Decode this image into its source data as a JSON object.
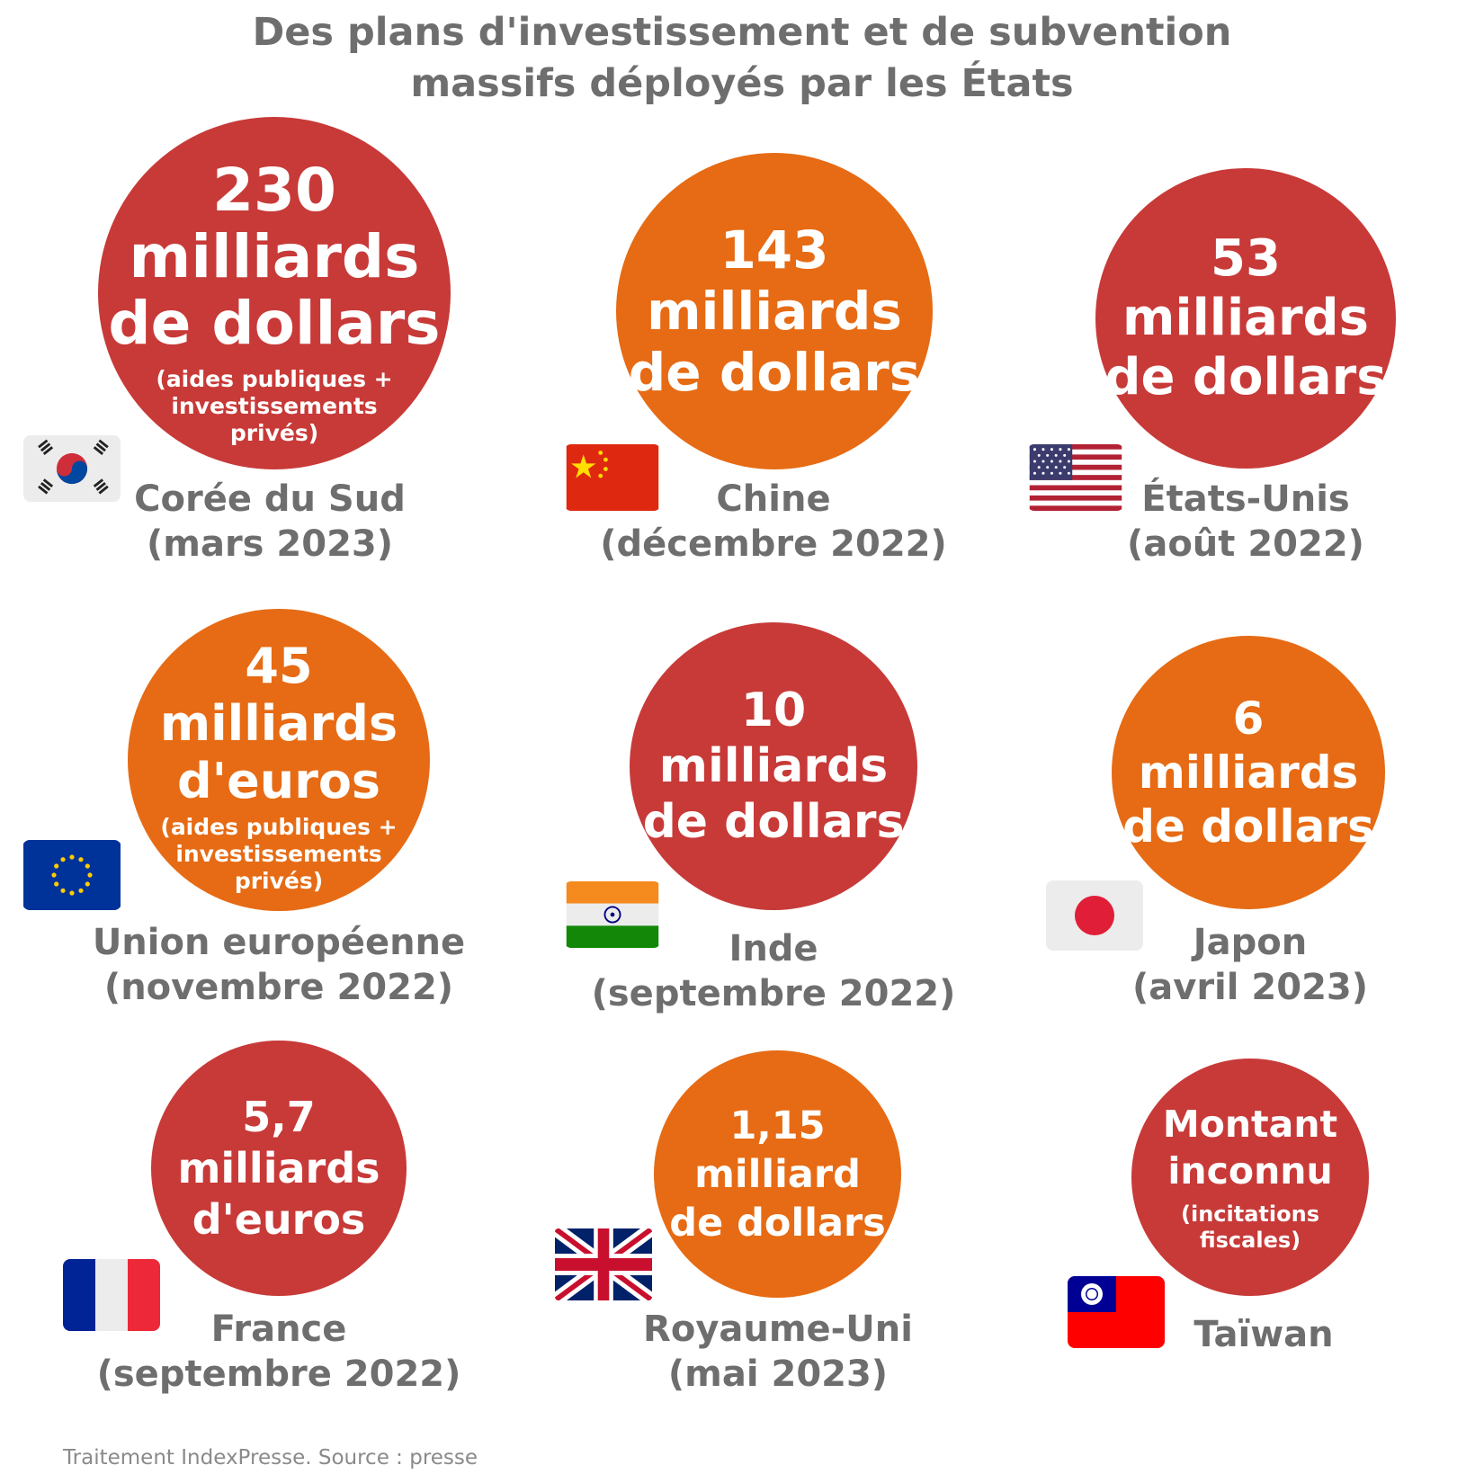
{
  "title": {
    "line1": "Des plans d'investissement et de subvention",
    "line2": "massifs déployés par les États"
  },
  "items": [
    {
      "amount": "230",
      "unit_line1": "milliards",
      "unit_line2": "de dollars",
      "note_line1": "(aides publiques +",
      "note_line2": "investissements",
      "note_line3": "privés)",
      "country": "Corée du Sud",
      "date": "(mars 2023)",
      "flag": "south-korea-flag",
      "color": "#c73a38"
    },
    {
      "amount": "143",
      "unit_line1": "milliards",
      "unit_line2": "de dollars",
      "country": "Chine",
      "date": "(décembre 2022)",
      "flag": "china-flag",
      "color": "#e66b14"
    },
    {
      "amount": "53",
      "unit_line1": "milliards",
      "unit_line2": "de dollars",
      "country": "États-Unis",
      "date": "(août 2022)",
      "flag": "usa-flag",
      "color": "#c73a38"
    },
    {
      "amount": "45",
      "unit_line1": "milliards",
      "unit_line2": "d'euros",
      "note_line1": "(aides publiques +",
      "note_line2": "investissements",
      "note_line3": "privés)",
      "country": "Union européenne",
      "date": "(novembre 2022)",
      "flag": "eu-flag",
      "color": "#e66b14"
    },
    {
      "amount": "10",
      "unit_line1": "milliards",
      "unit_line2": "de dollars",
      "country": "Inde",
      "date": "(septembre 2022)",
      "flag": "india-flag",
      "color": "#c73a38"
    },
    {
      "amount": "6",
      "unit_line1": "milliards",
      "unit_line2": "de dollars",
      "country": "Japon",
      "date": "(avril 2023)",
      "flag": "japan-flag",
      "color": "#e66b14"
    },
    {
      "amount": "5,7",
      "unit_line1": "milliards",
      "unit_line2": "d'euros",
      "country": "France",
      "date": "(septembre 2022)",
      "flag": "france-flag",
      "color": "#c73a38"
    },
    {
      "amount": "1,15",
      "unit_line1": "milliard",
      "unit_line2": "de dollars",
      "country": "Royaume-Uni",
      "date": "(mai 2023)",
      "flag": "uk-flag",
      "color": "#e66b14"
    },
    {
      "amount_line1": "Montant",
      "amount_line2": "inconnu",
      "note_line1": "(incitations",
      "note_line2": "fiscales)",
      "country": "Taïwan",
      "flag": "taiwan-flag",
      "color": "#c73a38"
    }
  ],
  "source": "Traitement IndexPresse. Source : presse"
}
